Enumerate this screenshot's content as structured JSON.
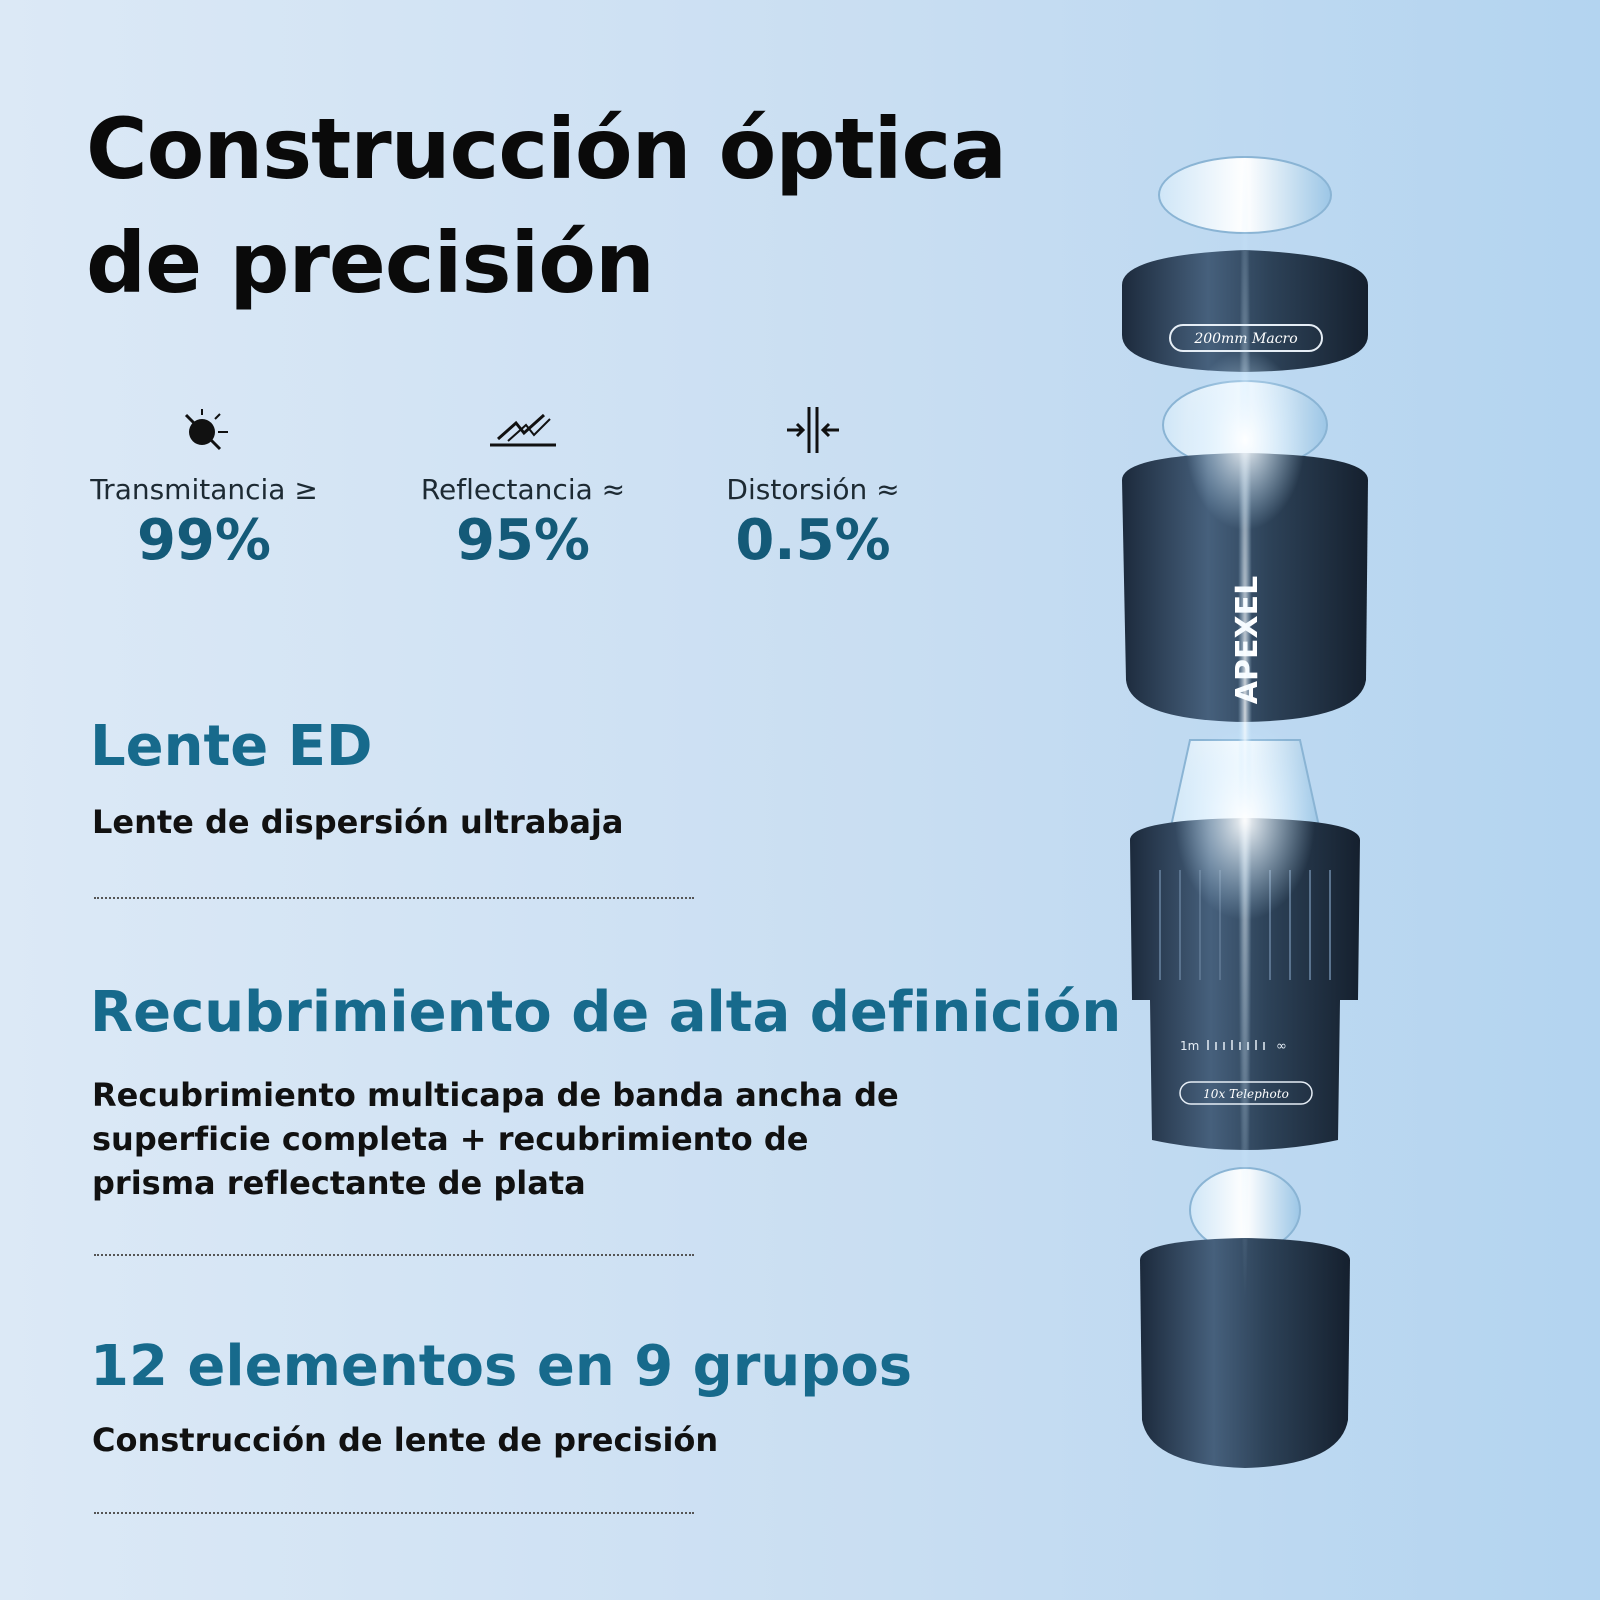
{
  "header": {
    "title_lines": [
      "Construcción óptica",
      "de precisión"
    ]
  },
  "stats": [
    {
      "label": "Transmitancia ≥",
      "value": "99%"
    },
    {
      "label": "Reflectancia ≈",
      "value": "95%"
    },
    {
      "label": "Distorsión ≈",
      "value": "0.5%"
    }
  ],
  "features": [
    {
      "title": "Lente ED",
      "description": "Lente de dispersión ultrabaja"
    },
    {
      "title": "Recubrimiento de alta definición",
      "description": "Recubrimiento multicapa de banda ancha de superficie completa + recubrimiento de prisma reflectante de plata"
    },
    {
      "title": "12 elementos en 9 grupos",
      "description": "Construcción de lente de precisión"
    }
  ],
  "product": {
    "brand": "APEXEL",
    "top_label": "200mm Macro",
    "bottom_label": "10x Telephoto",
    "scale_near": "1m",
    "scale_far": "∞"
  }
}
